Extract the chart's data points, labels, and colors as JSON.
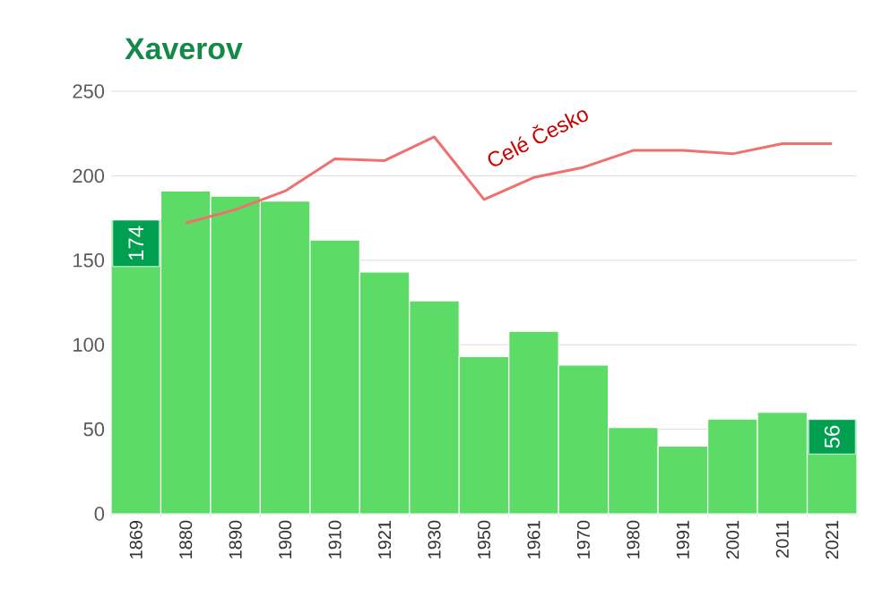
{
  "chart_data": {
    "type": "bar",
    "title": "Xaverov",
    "categories": [
      "1869",
      "1880",
      "1890",
      "1900",
      "1910",
      "1921",
      "1930",
      "1950",
      "1961",
      "1970",
      "1980",
      "1991",
      "2001",
      "2011",
      "2021"
    ],
    "ylim": [
      0,
      250
    ],
    "yticks": [
      0,
      50,
      100,
      150,
      200,
      250
    ],
    "grid": "y",
    "series": [
      {
        "color": "#5cdb66",
        "values": [
          174,
          191,
          188,
          185,
          162,
          143,
          126,
          93,
          108,
          88,
          51,
          40,
          56,
          60,
          56
        ],
        "value_labels": [
          "174",
          null,
          null,
          null,
          null,
          null,
          null,
          null,
          null,
          null,
          null,
          null,
          null,
          null,
          "56"
        ]
      },
      {
        "type": "line",
        "name": "Celé Česko",
        "color": "#f07070",
        "values": [
          null,
          172,
          180,
          191,
          210,
          209,
          223,
          186,
          199,
          205,
          215,
          215,
          213,
          219,
          219
        ]
      }
    ]
  }
}
